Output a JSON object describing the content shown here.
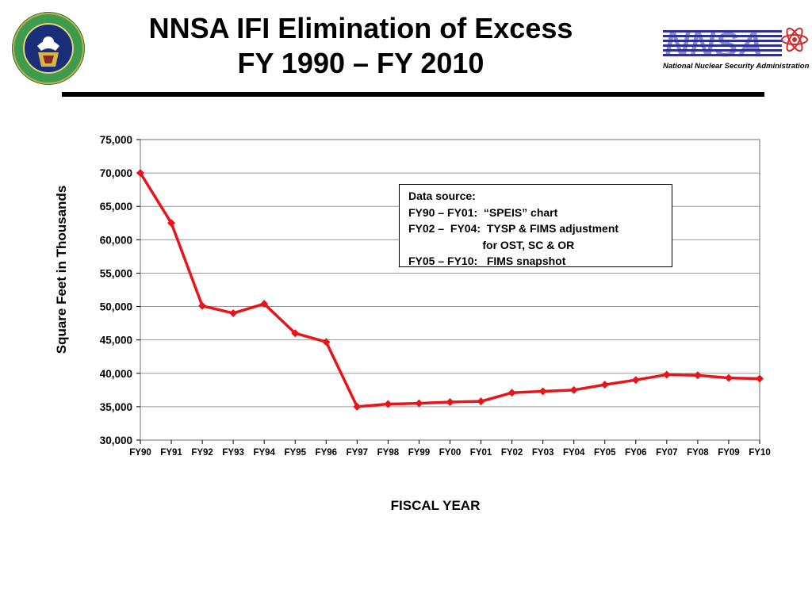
{
  "title": {
    "line1": "NNSA IFI Elimination of Excess",
    "line2": "FY 1990 – FY 2010"
  },
  "logos": {
    "left_seal": "department-of-energy-seal",
    "right": "nnsa-logo",
    "right_text": "NNSA",
    "right_caption": "National Nuclear Security Administration"
  },
  "note": {
    "lines": [
      "Data source:",
      "FY90 – FY01:  “SPEIS” chart",
      "FY02 –  FY04:  TYSP & FIMS adjustment",
      "                        for OST, SC & OR",
      "FY05 – FY10:   FIMS snapshot"
    ]
  },
  "colors": {
    "series": "#e8141a",
    "grid": "#999999",
    "frame": "#888888"
  },
  "chart_data": {
    "type": "line",
    "title": "NNSA IFI Elimination of Excess FY 1990 – FY 2010",
    "xlabel": "FISCAL YEAR",
    "ylabel": "Square Feet in Thousands",
    "categories": [
      "FY90",
      "FY91",
      "FY92",
      "FY93",
      "FY94",
      "FY95",
      "FY96",
      "FY97",
      "FY98",
      "FY99",
      "FY00",
      "FY01",
      "FY02",
      "FY03",
      "FY04",
      "FY05",
      "FY06",
      "FY07",
      "FY08",
      "FY09",
      "FY10"
    ],
    "series": [
      {
        "name": "",
        "values": [
          70000,
          62500,
          50100,
          49000,
          50400,
          46000,
          44700,
          35000,
          35400,
          35500,
          35700,
          35800,
          37100,
          37300,
          37500,
          38300,
          39000,
          39800,
          39700,
          39300,
          39200
        ]
      }
    ],
    "ylim": [
      30000,
      75000
    ],
    "yticks": [
      "30,000",
      "35,000",
      "40,000",
      "45,000",
      "50,000",
      "55,000",
      "60,000",
      "65,000",
      "70,000",
      "75,000"
    ],
    "ytick_values": [
      30000,
      35000,
      40000,
      45000,
      50000,
      55000,
      60000,
      65000,
      70000,
      75000
    ],
    "grid": true,
    "marker": "diamond",
    "legend": "none"
  }
}
